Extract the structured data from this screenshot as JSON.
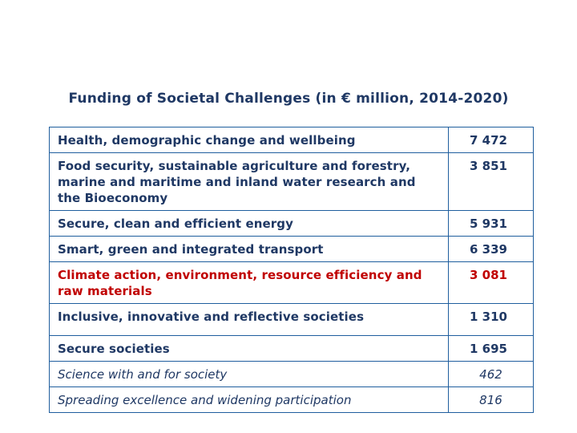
{
  "title": "Funding of Societal Challenges (in € million, 2014-2020)",
  "rows": [
    {
      "name": "Health, demographic change and wellbeing",
      "value": "7 472"
    },
    {
      "name": "Food security, sustainable agriculture and forestry, marine and maritime and inland water research and the Bioeconomy",
      "value": "3 851"
    },
    {
      "name": "Secure, clean and efficient energy",
      "value": "5 931"
    },
    {
      "name": "Smart, green and integrated transport",
      "value": "6 339"
    },
    {
      "name": "Climate action, environment, resource efficiency and raw materials",
      "value": "3 081"
    },
    {
      "name": "Inclusive, innovative and reflective societies",
      "value": "1 310"
    },
    {
      "name": "Secure societies",
      "value": "1 695"
    },
    {
      "name": "Science with and for society",
      "value": "462"
    },
    {
      "name": "Spreading excellence and widening participation",
      "value": "816"
    }
  ],
  "colors": {
    "text": "#1f3864",
    "highlight": "#c00000",
    "border": "#1f5e9e"
  }
}
